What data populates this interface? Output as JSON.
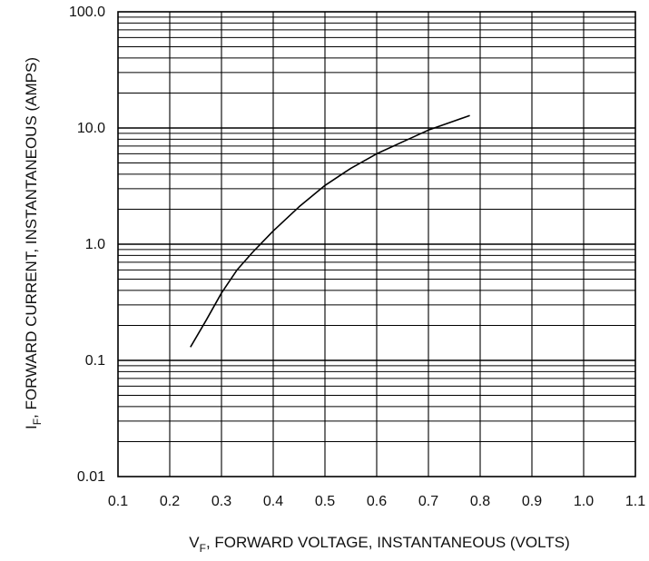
{
  "chart_data": {
    "type": "line",
    "title": "",
    "xlabel": "V_F, FORWARD VOLTAGE, INSTANTANEOUS (VOLTS)",
    "xlabel_parts": {
      "symbol": "V",
      "subscript": "F",
      "rest": ", FORWARD VOLTAGE, INSTANTANEOUS (VOLTS)"
    },
    "ylabel": "I_F, FORWARD CURRENT, INSTANTANEOUS (AMPS)",
    "ylabel_parts": {
      "symbol": "I",
      "subscript": "F",
      "rest": ", FORWARD CURRENT, INSTANTANEOUS (AMPS)"
    },
    "x_scale": "linear",
    "y_scale": "log",
    "xlim": [
      0.1,
      1.1
    ],
    "ylim": [
      0.01,
      100
    ],
    "x_ticks": [
      0.1,
      0.2,
      0.3,
      0.4,
      0.5,
      0.6,
      0.7,
      0.8,
      0.9,
      1.0,
      1.1
    ],
    "x_tick_labels": [
      "0.1",
      "0.2",
      "0.3",
      "0.4",
      "0.5",
      "0.6",
      "0.7",
      "0.8",
      "0.9",
      "1.0",
      "1.1"
    ],
    "y_ticks": [
      0.01,
      0.1,
      1,
      10,
      100
    ],
    "y_tick_labels": [
      "0.01",
      "0.1",
      "1.0",
      "10.0",
      "100.0"
    ],
    "grid": true,
    "legend": "none",
    "series": [
      {
        "color": "#000000",
        "x": [
          0.24,
          0.27,
          0.3,
          0.33,
          0.36,
          0.4,
          0.45,
          0.5,
          0.55,
          0.6,
          0.65,
          0.7,
          0.75,
          0.78
        ],
        "y": [
          0.13,
          0.22,
          0.38,
          0.6,
          0.85,
          1.3,
          2.1,
          3.2,
          4.5,
          6.0,
          7.6,
          9.6,
          11.5,
          12.8
        ]
      }
    ]
  }
}
